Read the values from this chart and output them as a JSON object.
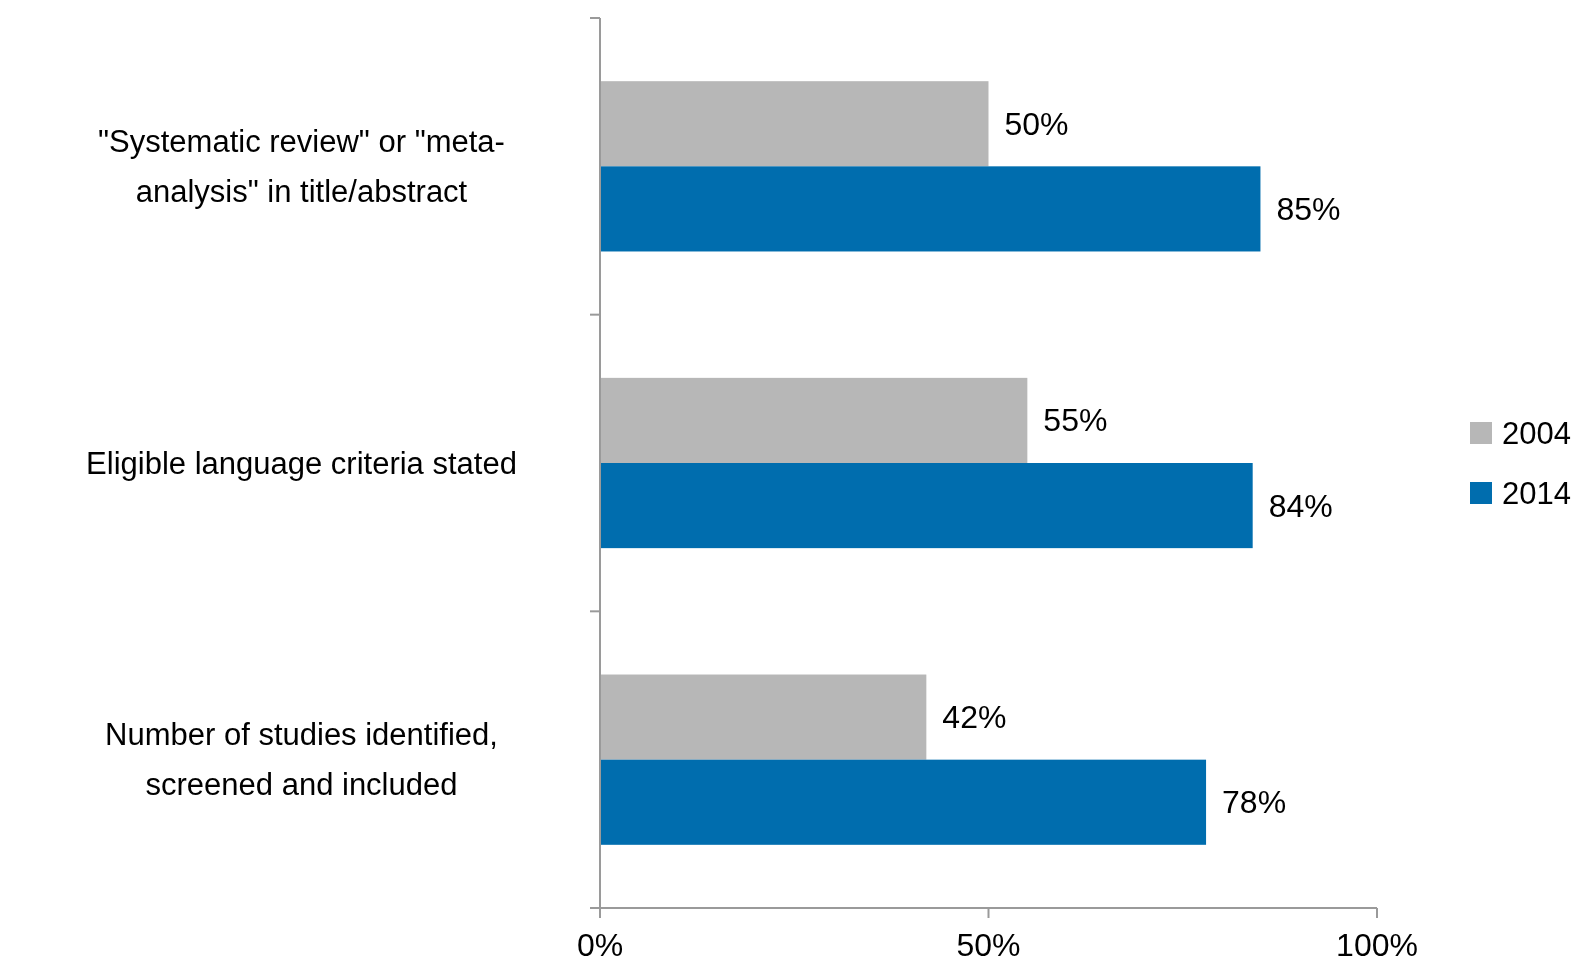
{
  "chart_data": {
    "type": "bar",
    "orientation": "horizontal",
    "categories": [
      "\"Systematic review\" or \"meta-analysis\" in title/abstract",
      "Eligible language criteria stated",
      "Number of studies identified, screened and included"
    ],
    "series": [
      {
        "name": "2004",
        "color": "#b7b7b7",
        "values": [
          50,
          55,
          42
        ],
        "value_labels": [
          "50%",
          "55%",
          "42%"
        ]
      },
      {
        "name": "2014",
        "color": "#006dae",
        "values": [
          85,
          84,
          78
        ],
        "value_labels": [
          "85%",
          "84%",
          "78%"
        ]
      }
    ],
    "xlim": [
      0,
      100
    ],
    "xticks": [
      {
        "value": 0,
        "label": "0%"
      },
      {
        "value": 50,
        "label": "50%"
      },
      {
        "value": 100,
        "label": "100%"
      }
    ],
    "grid": false,
    "legend": "right"
  }
}
